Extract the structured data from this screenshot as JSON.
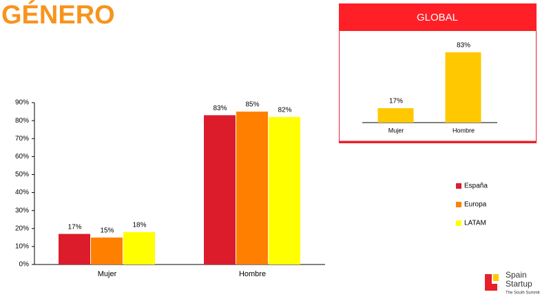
{
  "title": "GÉNERO",
  "logo": {
    "line1": "Spain",
    "line2": "Startup",
    "tagline": "The South Summit"
  },
  "chart_data": [
    {
      "type": "bar",
      "categories": [
        "Mujer",
        "Hombre"
      ],
      "series": [
        {
          "name": "España",
          "color": "#dc1c2b",
          "values": [
            17,
            83
          ],
          "value_labels": [
            "17%",
            "83%"
          ]
        },
        {
          "name": "Europa",
          "color": "#ff8000",
          "values": [
            15,
            85
          ],
          "value_labels": [
            "15%",
            "85%"
          ]
        },
        {
          "name": "LATAM",
          "color": "#ffff00",
          "values": [
            18,
            82
          ],
          "value_labels": [
            "18%",
            "82%"
          ]
        }
      ],
      "ylim": [
        0,
        90
      ],
      "yticks": [
        {
          "value": 0,
          "label": "0%"
        },
        {
          "value": 10,
          "label": "10%"
        },
        {
          "value": 20,
          "label": "20%"
        },
        {
          "value": 30,
          "label": "30%"
        },
        {
          "value": 40,
          "label": "40%"
        },
        {
          "value": 50,
          "label": "50%"
        },
        {
          "value": 60,
          "label": "60%"
        },
        {
          "value": 70,
          "label": "70%"
        },
        {
          "value": 80,
          "label": "80%"
        },
        {
          "value": 90,
          "label": "90%"
        }
      ],
      "legend": "right"
    },
    {
      "type": "bar",
      "title": "GLOBAL",
      "categories": [
        "Mujer",
        "Hombre"
      ],
      "values": [
        17,
        83
      ],
      "value_labels": [
        "17%",
        "83%"
      ],
      "color": "#ffc800"
    }
  ]
}
